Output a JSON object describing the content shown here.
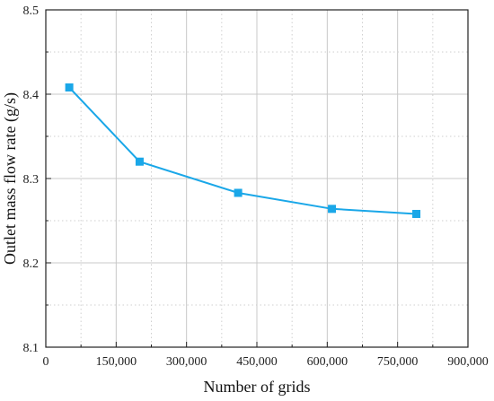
{
  "chart_data": {
    "type": "line",
    "title": "",
    "xlabel": "Number of grids",
    "ylabel": "Outlet mass flow rate (g/s)",
    "xlim": [
      0,
      900000
    ],
    "ylim": [
      8.1,
      8.5
    ],
    "x_ticks": [
      0,
      150000,
      300000,
      450000,
      600000,
      750000,
      900000
    ],
    "x_tick_labels": [
      "0",
      "150,000",
      "300,000",
      "450,000",
      "600,000",
      "750,000",
      "900,000"
    ],
    "y_ticks": [
      8.1,
      8.2,
      8.3,
      8.4,
      8.5
    ],
    "y_tick_labels": [
      "8.1",
      "8.2",
      "8.3",
      "8.4",
      "8.5"
    ],
    "grid": true,
    "legend": "none",
    "series": [
      {
        "color": "#1aa7e8",
        "marker": "square",
        "x": [
          50000,
          200000,
          410000,
          610000,
          790000
        ],
        "y": [
          8.408,
          8.32,
          8.283,
          8.264,
          8.258
        ]
      }
    ]
  }
}
